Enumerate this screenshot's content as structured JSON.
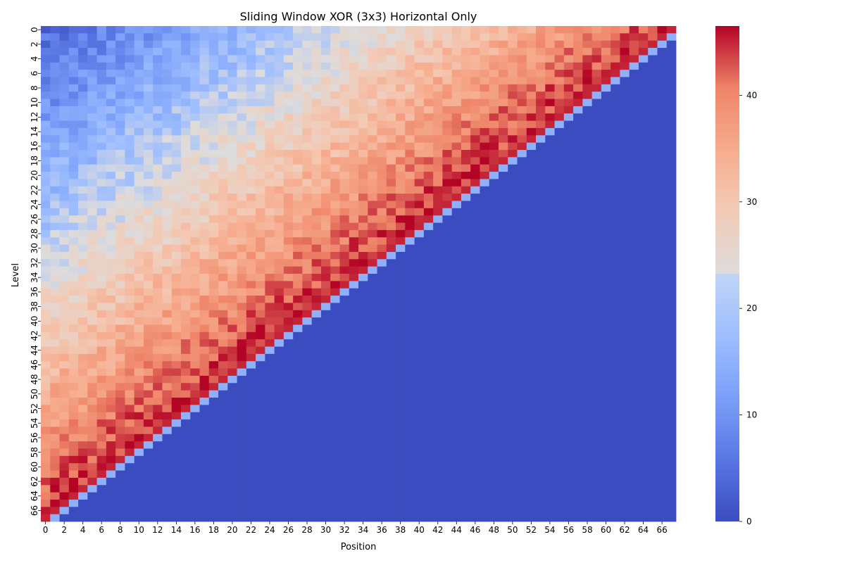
{
  "chart_data": {
    "type": "heatmap",
    "title": "Sliding Window XOR (3x3) Horizontal Only",
    "xlabel": "Position",
    "ylabel": "Level",
    "rows": 68,
    "cols": 68,
    "x_tick_labels": [
      "0",
      "2",
      "4",
      "6",
      "8",
      "10",
      "12",
      "14",
      "16",
      "18",
      "20",
      "22",
      "24",
      "26",
      "28",
      "30",
      "32",
      "34",
      "36",
      "38",
      "40",
      "42",
      "44",
      "46",
      "48",
      "50",
      "52",
      "54",
      "56",
      "58",
      "60",
      "62",
      "64",
      "66"
    ],
    "y_tick_labels": [
      "0",
      "2",
      "4",
      "6",
      "8",
      "10",
      "12",
      "14",
      "16",
      "18",
      "20",
      "22",
      "24",
      "26",
      "28",
      "30",
      "32",
      "34",
      "36",
      "38",
      "40",
      "42",
      "44",
      "46",
      "48",
      "50",
      "52",
      "54",
      "56",
      "58",
      "60",
      "62",
      "64",
      "66"
    ],
    "colormap": "coolwarm",
    "vmin": 0,
    "vmax": 46.5,
    "colorbar_ticks": [
      "0",
      "10",
      "20",
      "30",
      "40"
    ],
    "description_of_values": {
      "upper_left_triangle": "gradient from ~5 at (row 0, col 0) rising to ~45 at the anti-diagonal",
      "anti_diagonal_band": "one cell at ~45 then one cell at ~15",
      "lower_right_triangle": "all 0"
    }
  }
}
